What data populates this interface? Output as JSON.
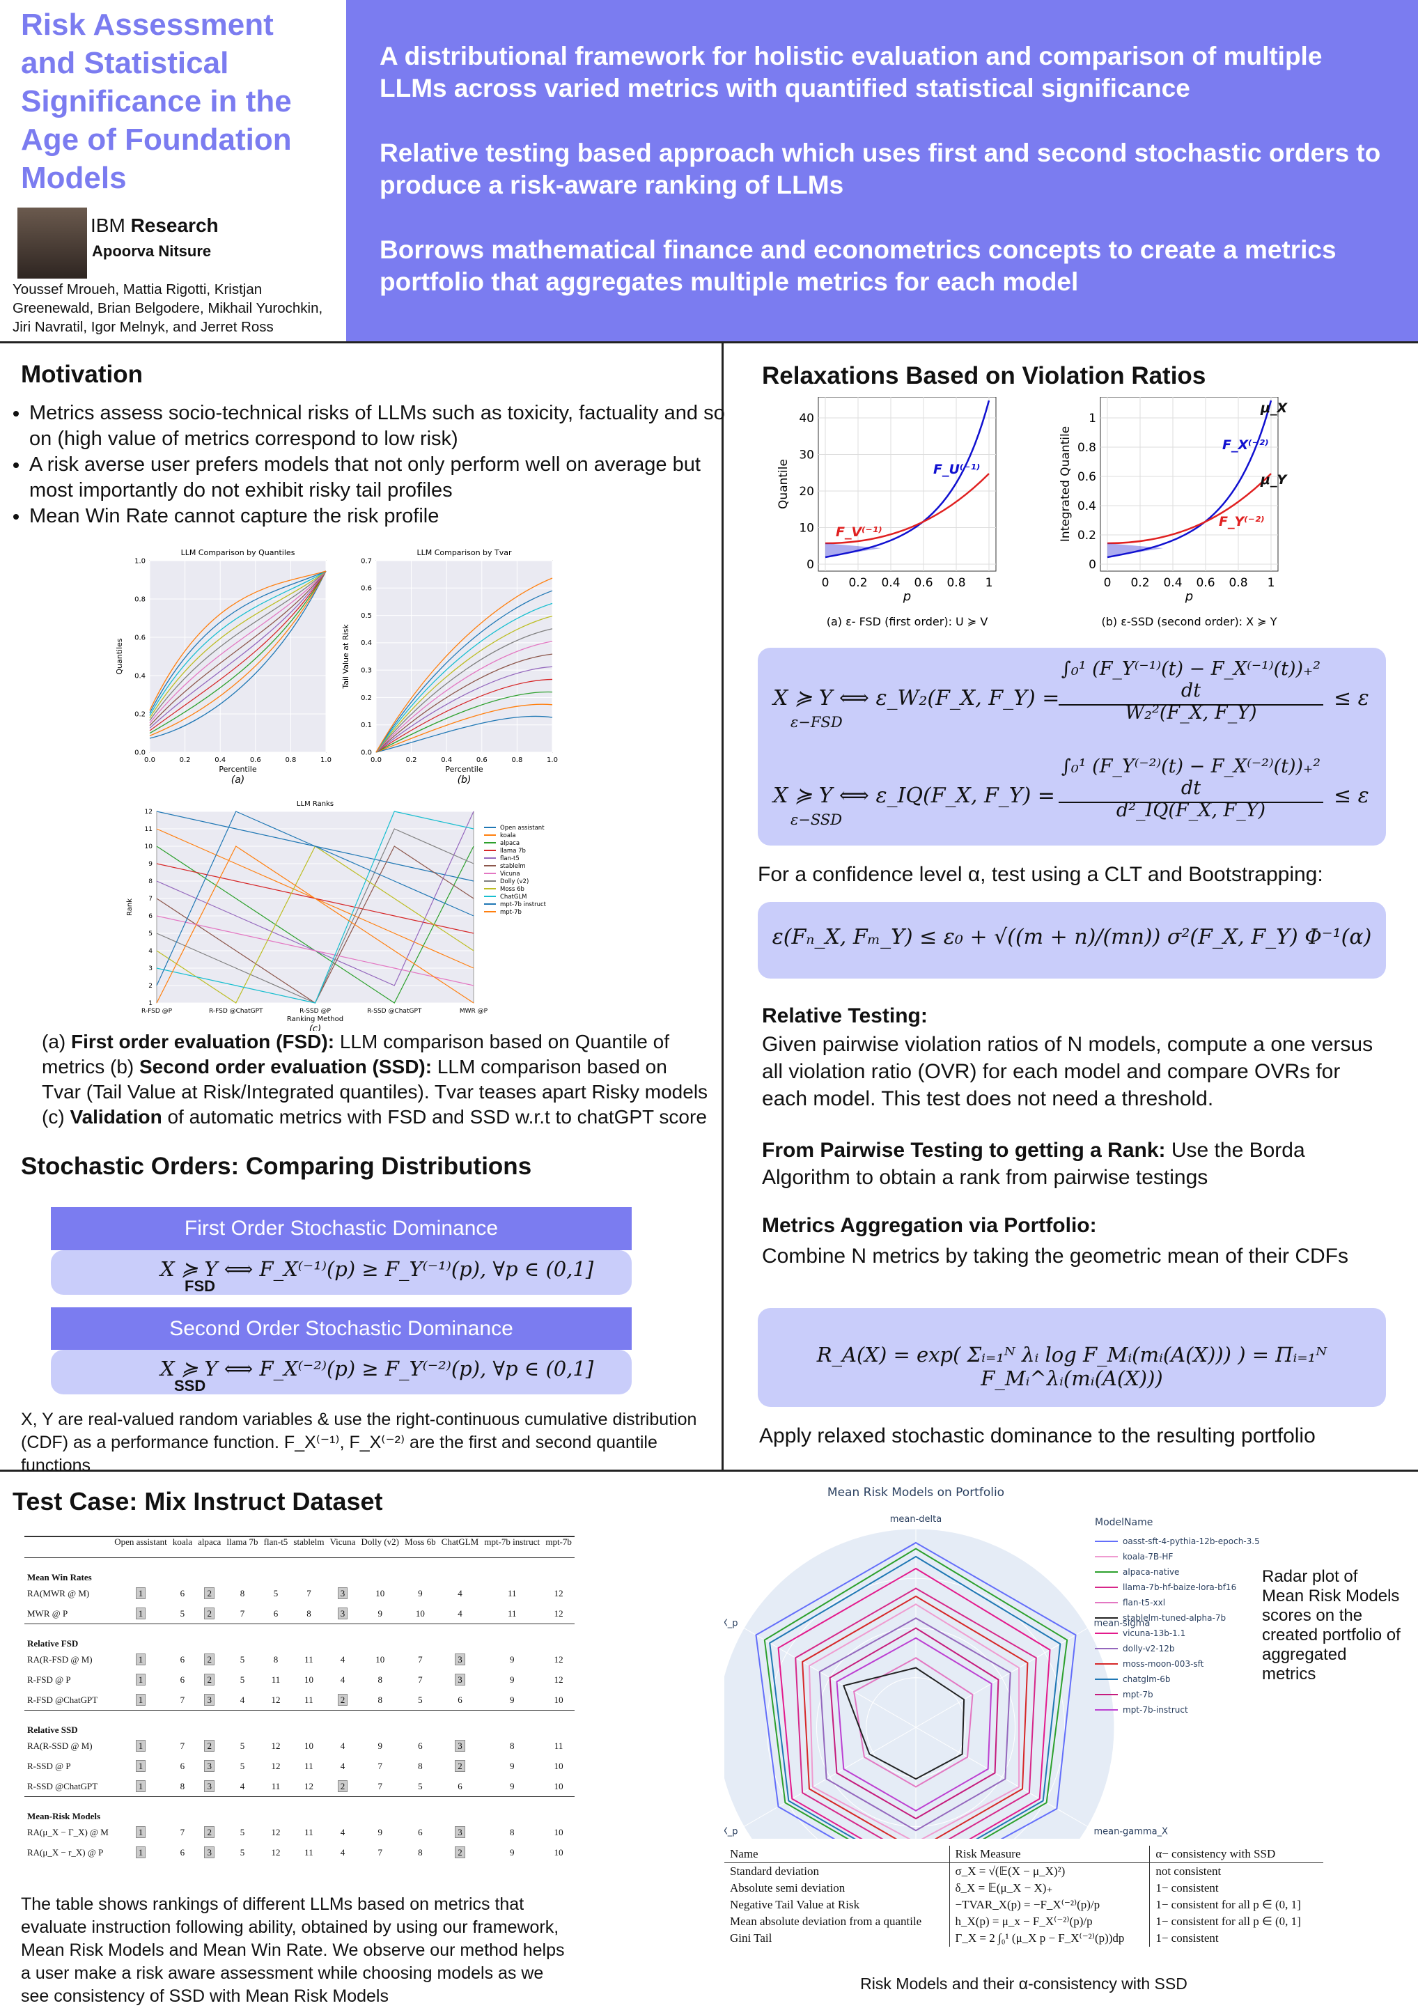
{
  "header": {
    "title": "Risk Assessment and Statistical Significance in the Age of Foundation Models",
    "org_a": "IBM",
    "org_b": "Research",
    "presenter": "Apoorva Nitsure",
    "authors": "Youssef Mroueh, Mattia Rigotti, Kristjan Greenewald, Brian Belgodere, Mikhail Yurochkin, Jiri Navratil, Igor Melnyk, and Jerret Ross",
    "highlights": [
      "A distributional framework for holistic evaluation and comparison of multiple LLMs across varied metrics with quantified statistical significance",
      "Relative testing based approach which uses first and second stochastic orders to produce a risk-aware ranking of LLMs",
      "Borrows mathematical finance and econometrics concepts to create a metrics portfolio that aggregates multiple metrics for each model"
    ]
  },
  "motivation": {
    "heading": "Motivation",
    "bullets": [
      "Metrics assess socio-technical risks of LLMs such as toxicity, factuality and so on (high value of metrics correspond to low risk)",
      "A risk averse user prefers models that not only perform well on average but most importantly do not exhibit risky tail profiles",
      "Mean Win Rate cannot capture the risk profile"
    ]
  },
  "figures": {
    "quantile": {
      "title": "LLM Comparison by Quantiles",
      "xlabel": "Percentile",
      "ylabel": "Quantiles",
      "xticks": [
        "0.0",
        "0.2",
        "0.4",
        "0.6",
        "0.8",
        "1.0"
      ],
      "yticks": [
        "0.0",
        "0.2",
        "0.4",
        "0.6",
        "0.8",
        "1.0"
      ],
      "sub": "(a)"
    },
    "tvar": {
      "title": "LLM Comparison by Tvar",
      "xlabel": "Percentile",
      "ylabel": "Tail Value at Risk",
      "xticks": [
        "0.0",
        "0.2",
        "0.4",
        "0.6",
        "0.8",
        "1.0"
      ],
      "yticks": [
        "0.0",
        "0.1",
        "0.2",
        "0.3",
        "0.4",
        "0.5",
        "0.6",
        "0.7"
      ],
      "sub": "(b)"
    },
    "ranks": {
      "title": "LLM Ranks",
      "xlabel": "Ranking Method",
      "ylabel": "Rank",
      "yticks": [
        "1",
        "2",
        "3",
        "4",
        "5",
        "6",
        "7",
        "8",
        "9",
        "10",
        "11",
        "12"
      ],
      "categories": [
        "R-FSD @P",
        "R-FSD @ChatGPT",
        "R-SSD @P",
        "R-SSD @ChatGPT",
        "MWR @P"
      ],
      "legend": [
        "Open assistant",
        "koala",
        "alpaca",
        "llama 7b",
        "flan-t5",
        "stablelm",
        "Vicuna",
        "Dolly (v2)",
        "Moss 6b",
        "ChatGLM",
        "mpt-7b instruct",
        "mpt-7b"
      ],
      "sub": "(c)"
    }
  },
  "caption": [
    {
      "text": "(a) "
    },
    {
      "text": "First order evaluation (FSD):",
      "bold": true
    },
    {
      "text": " LLM comparison based on Quantile of metrics (b) "
    },
    {
      "text": "Second order evaluation (SSD):",
      "bold": true
    },
    {
      "text": " LLM comparison based on Tvar (Tail Value at Risk/Integrated quantiles). Tvar teases apart Risky models (c) "
    },
    {
      "text": "Validation",
      "bold": true
    },
    {
      "text": " of automatic metrics with FSD and SSD w.r.t to chatGPT score"
    }
  ],
  "stochastic": {
    "heading": "Stochastic Orders: Comparing Distributions",
    "fsd_title": "First Order Stochastic Dominance",
    "fsd_formula": "X ≽ Y ⟺ F_X⁽⁻¹⁾(p) ≥ F_Y⁽⁻¹⁾(p), ∀p ∈ (0,1]",
    "fsd_sub": "FSD",
    "ssd_title": "Second Order Stochastic Dominance",
    "ssd_formula": "X ≽ Y ⟺ F_X⁽⁻²⁾(p) ≥ F_Y⁽⁻²⁾(p), ∀p ∈ (0,1]",
    "ssd_sub": "SSD",
    "note": "X, Y are real-valued random variables & use the right-continuous cumulative distribution (CDF) as a performance function. F_X⁽⁻¹⁾, F_X⁽⁻²⁾ are the first and second quantile functions"
  },
  "relax": {
    "heading": "Relaxations Based on Violation Ratios",
    "fig1": {
      "ylabel": "Quantile",
      "xlabel": "p",
      "xticks": [
        "0",
        "0.2",
        "0.4",
        "0.6",
        "0.8",
        "1"
      ],
      "yticks": [
        "0",
        "10",
        "20",
        "30",
        "40"
      ],
      "lab_u": "F_U⁽⁻¹⁾",
      "lab_v": "F_V⁽⁻¹⁾",
      "caption": "(a) ε- FSD (first order): U ≽ V"
    },
    "fig2": {
      "ylabel": "Integrated Quantile",
      "xlabel": "p",
      "xticks": [
        "0",
        "0.2",
        "0.4",
        "0.6",
        "0.8",
        "1"
      ],
      "yticks": [
        "0",
        "0.2",
        "0.4",
        "0.6",
        "0.8",
        "1"
      ],
      "lab_x": "F_X⁽⁻²⁾",
      "lab_y": "F_Y⁽⁻²⁾",
      "mu_x": "μ_X",
      "mu_y": "μ_Y",
      "caption": "(b) ε-SSD (second order): X ≽ Y"
    },
    "f1_lhs": "X ≽ Y ⟺ ε_W₂(F_X, F_Y) =",
    "f1_sub": "ε−FSD",
    "f1_num": "∫₀¹ (F_Y⁽⁻¹⁾(t) − F_X⁽⁻¹⁾(t))₊² dt",
    "f1_den": "W₂²(F_X, F_Y)",
    "f1_rhs": "≤ ε",
    "f2_lhs": "X ≽ Y ⟺ ε_IQ(F_X, F_Y) =",
    "f2_sub": "ε−SSD",
    "f2_num": "∫₀¹ (F_Y⁽⁻²⁾(t) − F_X⁽⁻²⁾(t))₊² dt",
    "f2_den": "d²_IQ(F_X, F_Y)",
    "f2_rhs": "≤ ε",
    "confidence": "For a confidence level α, test using a CLT and Bootstrapping:",
    "clt": "ε(Fₙ_X, Fₘ_Y) ≤ ε₀ + √((m + n)/(mn)) σ²(F_X, F_Y) Φ⁻¹(α)",
    "rt_head": "Relative Testing:",
    "rt_text": "Given pairwise violation ratios of N models, compute a one versus all violation ratio (OVR) for each model and compare OVRs for each model. This test does not need a threshold.",
    "pw_head": "From Pairwise Testing to getting a Rank:",
    "pw_text": "Use the Borda Algorithm to obtain a rank from pairwise testings",
    "ma_head": "Metrics Aggregation via Portfolio:",
    "ma_text": "Combine N metrics by taking the geometric mean of their CDFs",
    "portfolio": "R_A(X) = exp( Σᵢ₌₁ᴺ λᵢ log F_Mᵢ(mᵢ(A(X))) ) = Πᵢ₌₁ᴺ F_Mᵢ^λᵢ(mᵢ(A(X)))",
    "apply": "Apply relaxed stochastic dominance to the resulting portfolio"
  },
  "test_case": {
    "heading": "Test Case: Mix Instruct Dataset",
    "columns": [
      "Open assistant",
      "koala",
      "alpaca",
      "llama 7b",
      "flan-t5",
      "stablelm",
      "Vicuna",
      "Dolly (v2)",
      "Moss 6b",
      "ChatGLM",
      "mpt-7b instruct",
      "mpt-7b"
    ],
    "groups": [
      {
        "name": "Mean Win Rates",
        "rows": [
          {
            "label": "RA(MWR @ M)",
            "values": [
              1,
              6,
              2,
              8,
              5,
              7,
              3,
              10,
              9,
              4,
              11,
              12
            ]
          },
          {
            "label": "MWR @ P",
            "values": [
              1,
              5,
              2,
              7,
              6,
              8,
              3,
              9,
              10,
              4,
              11,
              12
            ]
          }
        ]
      },
      {
        "name": "Relative FSD",
        "rows": [
          {
            "label": "RA(R-FSD @ M)",
            "values": [
              1,
              6,
              2,
              5,
              8,
              11,
              4,
              10,
              7,
              3,
              9,
              12
            ]
          },
          {
            "label": "R-FSD @ P",
            "values": [
              1,
              6,
              2,
              5,
              11,
              10,
              4,
              8,
              7,
              3,
              9,
              12
            ]
          },
          {
            "label": "R-FSD @ChatGPT",
            "values": [
              1,
              7,
              3,
              4,
              12,
              11,
              2,
              8,
              5,
              6,
              9,
              10
            ]
          }
        ]
      },
      {
        "name": "Relative SSD",
        "rows": [
          {
            "label": "RA(R-SSD @ M)",
            "values": [
              1,
              7,
              2,
              5,
              12,
              10,
              4,
              9,
              6,
              3,
              8,
              11
            ]
          },
          {
            "label": "R-SSD @ P",
            "values": [
              1,
              6,
              3,
              5,
              12,
              11,
              4,
              7,
              8,
              2,
              9,
              10
            ]
          },
          {
            "label": "R-SSD @ChatGPT",
            "values": [
              1,
              8,
              3,
              4,
              11,
              12,
              2,
              7,
              5,
              6,
              9,
              10
            ]
          }
        ]
      },
      {
        "name": "Mean-Risk Models",
        "rows": [
          {
            "label": "RA(μ_X − Γ_X) @ M",
            "values": [
              1,
              7,
              2,
              5,
              12,
              11,
              4,
              9,
              6,
              3,
              8,
              10
            ]
          },
          {
            "label": "RA(μ_X − r_X) @ P",
            "values": [
              1,
              6,
              3,
              5,
              12,
              11,
              4,
              7,
              8,
              2,
              9,
              10
            ]
          }
        ]
      }
    ],
    "caption": "The table shows rankings of different LLMs based on metrics that evaluate instruction following ability, obtained by using our framework, Mean Risk Models and Mean Win Rate. We observe our method helps a user make a risk aware assessment while choosing models as we see consistency of SSD with Mean Risk Models"
  },
  "radar": {
    "type": "radar",
    "title": "Mean Risk Models on Portfolio",
    "legend_title": "ModelName",
    "axes": [
      "mean-delta",
      "mean-sigma",
      "mean-gamma_X",
      "mean-h_X_p",
      "mean-gini_X_p",
      "mean-ntvar_X_p"
    ],
    "rlim": [
      0,
      1
    ],
    "series": [
      {
        "name": "oasst-sft-4-pythia-12b-epoch-3.5",
        "color": "#636efa",
        "values": [
          0.93,
          0.93,
          0.82,
          0.8,
          0.8,
          0.93
        ]
      },
      {
        "name": "koala-7B-HF",
        "color": "#ef9bd0",
        "values": [
          0.62,
          0.6,
          0.6,
          0.58,
          0.6,
          0.62
        ]
      },
      {
        "name": "alpaca-native",
        "color": "#2ca02c",
        "values": [
          0.9,
          0.88,
          0.76,
          0.76,
          0.76,
          0.88
        ]
      },
      {
        "name": "llama-7b-hf-baize-lora-bf16",
        "color": "#d62789",
        "values": [
          0.7,
          0.7,
          0.66,
          0.66,
          0.66,
          0.7
        ]
      },
      {
        "name": "flan-t5-xxl",
        "color": "#e377c2",
        "values": [
          0.35,
          0.33,
          0.3,
          0.3,
          0.3,
          0.36
        ]
      },
      {
        "name": "stablelm-tuned-alpha-7b",
        "color": "#222222",
        "values": [
          0.3,
          0.28,
          0.27,
          0.26,
          0.27,
          0.42
        ]
      },
      {
        "name": "vicuna-13b-1.1",
        "color": "#e31a8c",
        "values": [
          0.8,
          0.78,
          0.72,
          0.72,
          0.72,
          0.8
        ]
      },
      {
        "name": "dolly-v2-12b",
        "color": "#9467bd",
        "values": [
          0.55,
          0.55,
          0.52,
          0.52,
          0.52,
          0.56
        ]
      },
      {
        "name": "moss-moon-003-sft",
        "color": "#d62728",
        "values": [
          0.66,
          0.65,
          0.62,
          0.62,
          0.62,
          0.66
        ]
      },
      {
        "name": "chatglm-6b",
        "color": "#1f77b4",
        "values": [
          0.86,
          0.84,
          0.74,
          0.74,
          0.74,
          0.85
        ]
      },
      {
        "name": "mpt-7b",
        "color": "#c51b7d",
        "values": [
          0.5,
          0.48,
          0.46,
          0.46,
          0.46,
          0.5
        ]
      },
      {
        "name": "mpt-7b-instruct",
        "color": "#bc3fd1",
        "values": [
          0.45,
          0.44,
          0.42,
          0.42,
          0.42,
          0.46
        ]
      }
    ]
  },
  "radar_note": "Radar plot of Mean Risk Models scores on the created portfolio of aggregated metrics",
  "risk_table": {
    "columns": [
      "Name",
      "Risk Measure",
      "α− consistency with SSD"
    ],
    "rows": [
      [
        "Standard deviation",
        "σ_X = √(𝔼(X − μ_X)²)",
        "not consistent"
      ],
      [
        "Absolute semi deviation",
        "δ_X = 𝔼(μ_X − X)₊",
        "1− consistent"
      ],
      [
        "Negative Tail Value at Risk",
        "−TVAR_X(p) = −F_X⁽⁻²⁾(p)/p",
        "1− consistent for all p ∈ (0, 1]"
      ],
      [
        "Mean absolute deviation from a quantile",
        "h_X(p) = μ_x − F_X⁽⁻²⁾(p)/p",
        "1− consistent for all p ∈ (0, 1]"
      ],
      [
        "Gini Tail",
        "Γ_X = 2 ∫₀¹ (μ_X p − F_X⁽⁻²⁾(p))dp",
        "1− consistent"
      ]
    ],
    "caption": "Risk Models and their α-consistency with SSD"
  }
}
